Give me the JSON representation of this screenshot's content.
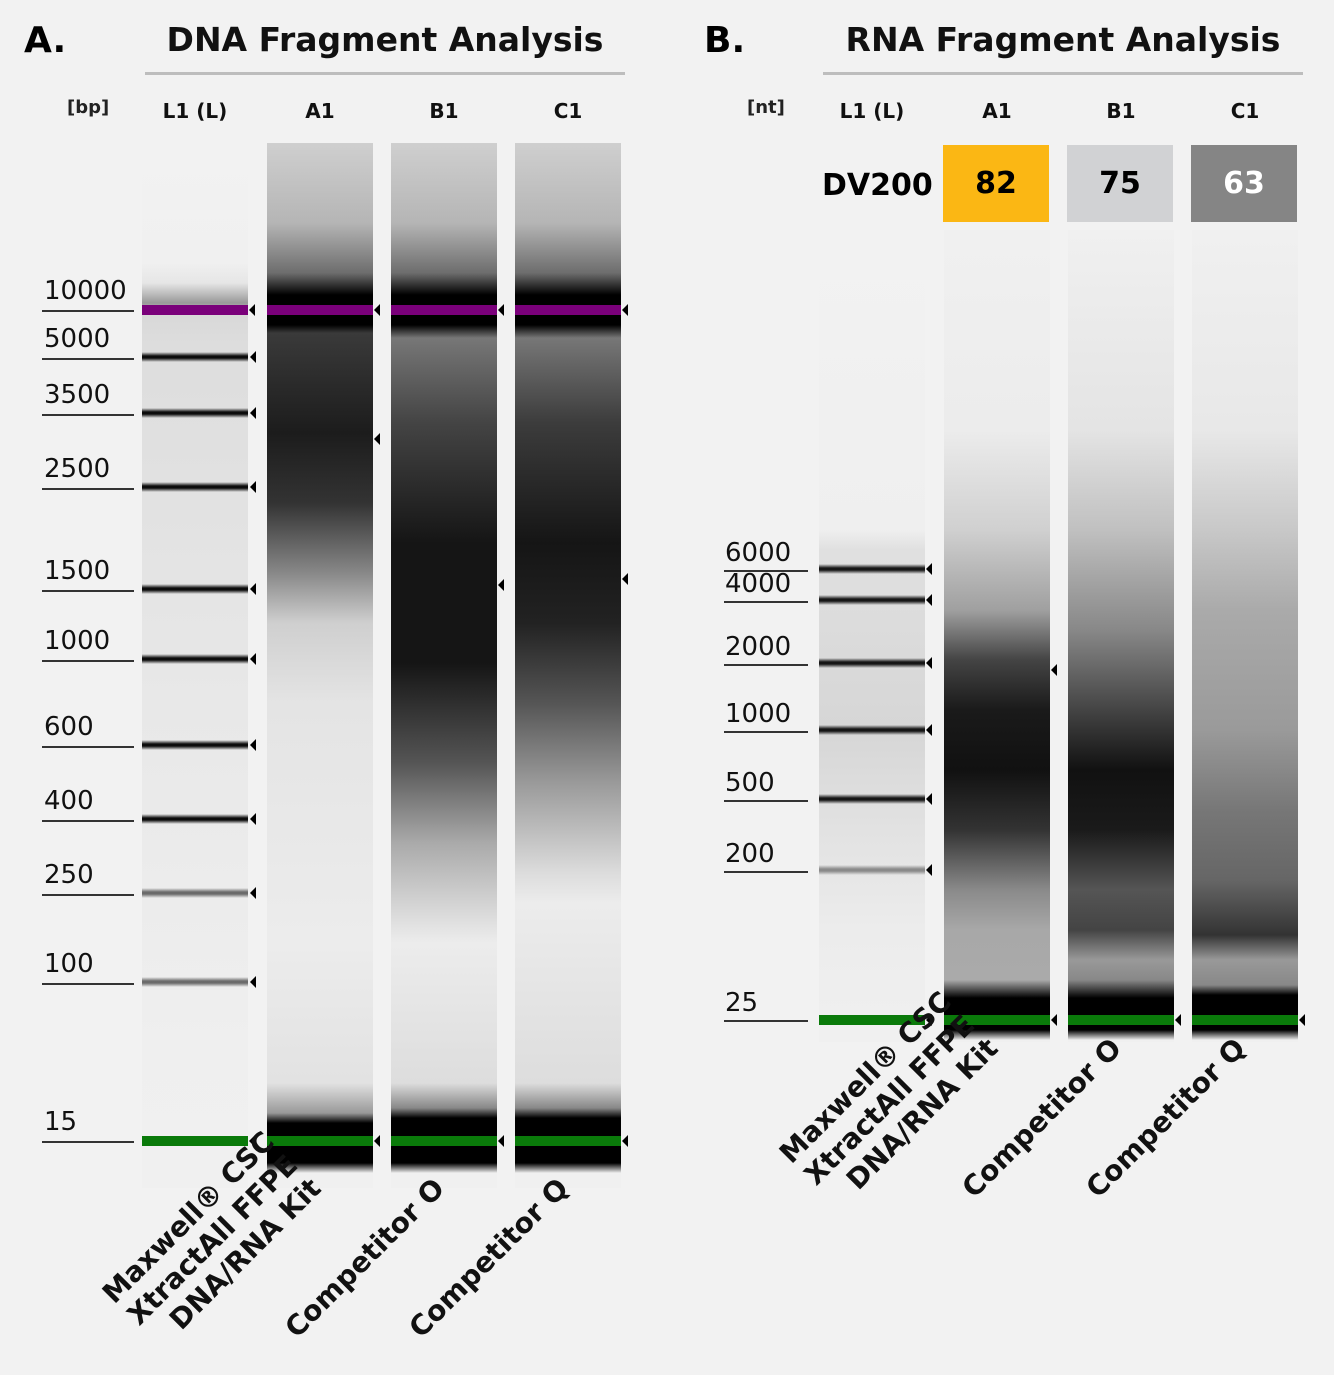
{
  "panel_a": {
    "letter": "A.",
    "title": "DNA Fragment Analysis",
    "unit": "[bp]",
    "lanes": [
      "L1 (L)",
      "A1",
      "B1",
      "C1"
    ],
    "ladder": [
      "10000",
      "5000",
      "3500",
      "2500",
      "1500",
      "1000",
      "600",
      "400",
      "250",
      "100",
      "15"
    ],
    "sample_labels": [
      [
        "Maxwell® CSC",
        "XtractAll FFPE",
        "DNA/RNA Kit"
      ],
      [
        "Competitor O"
      ],
      [
        "Competitor Q"
      ]
    ]
  },
  "panel_b": {
    "letter": "B.",
    "title": "RNA Fragment Analysis",
    "unit": "[nt]",
    "lanes": [
      "L1 (L)",
      "A1",
      "B1",
      "C1"
    ],
    "dv200_label": "DV200",
    "dv200": [
      {
        "lane": "A1",
        "value": "82",
        "color": "#fbb714",
        "text_color": "#000000"
      },
      {
        "lane": "B1",
        "value": "75",
        "color": "#d1d2d4",
        "text_color": "#000000"
      },
      {
        "lane": "C1",
        "value": "63",
        "color": "#858585",
        "text_color": "#ffffff"
      }
    ],
    "ladder": [
      "6000",
      "4000",
      "2000",
      "1000",
      "500",
      "200",
      "25"
    ],
    "sample_labels": [
      [
        "Maxwell® CSC",
        "XtractAll FFPE",
        "DNA/RNA Kit"
      ],
      [
        "Competitor O"
      ],
      [
        "Competitor Q"
      ]
    ]
  },
  "colors": {
    "upper_marker": "#7a007a",
    "lower_marker": "#0a7a0a",
    "background": "#f2f2f2"
  }
}
